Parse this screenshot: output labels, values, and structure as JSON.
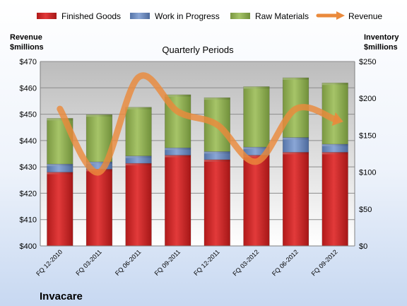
{
  "chart_data": {
    "type": "bar",
    "stacked": true,
    "title": "Quarterly Periods",
    "company": "Invacare",
    "left_axis": {
      "label_line1": "Revenue",
      "label_line2": "$millions",
      "ylim": [
        400,
        470
      ],
      "ticks": [
        "$400",
        "$410",
        "$420",
        "$430",
        "$440",
        "$450",
        "$460",
        "$470"
      ]
    },
    "right_axis": {
      "label_line1": "Inventory",
      "label_line2": "$millions",
      "ylim": [
        0,
        250
      ],
      "ticks": [
        "$0",
        "$50",
        "$100",
        "$150",
        "$200",
        "$250"
      ]
    },
    "categories": [
      "FQ 12-2010",
      "FQ 03-2011",
      "FQ 06-2011",
      "FQ 09-2011",
      "FQ 12-2011",
      "FQ 03-2012",
      "FQ 06-2012",
      "FQ 09-2012"
    ],
    "series": [
      {
        "name": "Finished Goods",
        "axis": "right",
        "color": "#d42a2a",
        "values": [
          100,
          104,
          112,
          123,
          117,
          123,
          127,
          127
        ]
      },
      {
        "name": "Work in Progress",
        "axis": "right",
        "color": "#6f8fc4",
        "values": [
          11,
          10,
          10,
          10,
          11,
          11,
          20,
          11
        ]
      },
      {
        "name": "Raw Materials",
        "axis": "right",
        "color": "#94b456",
        "values": [
          62,
          64,
          66,
          72,
          73,
          82,
          81,
          83
        ]
      },
      {
        "name": "Revenue",
        "axis": "left",
        "type": "line",
        "color": "#ea8a3c",
        "values": [
          452,
          428,
          464,
          451,
          446,
          432,
          452,
          448
        ]
      }
    ],
    "grid": true,
    "legend": "top"
  }
}
